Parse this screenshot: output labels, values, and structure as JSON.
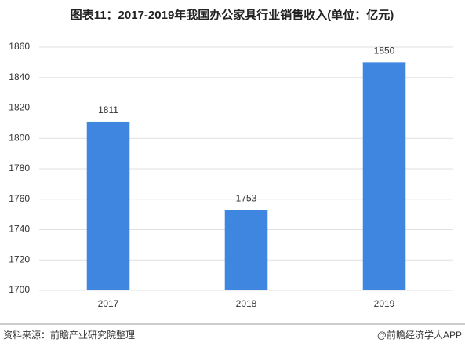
{
  "chart_data": {
    "type": "bar",
    "title": "图表11：2017-2019年我国办公家具行业销售收入(单位：亿元)",
    "categories": [
      "2017",
      "2018",
      "2019"
    ],
    "values": [
      1811,
      1753,
      1850
    ],
    "color": "#3f86e0",
    "ylim": [
      1700,
      1860
    ],
    "yticks": [
      1700,
      1720,
      1740,
      1760,
      1780,
      1800,
      1820,
      1840,
      1860
    ],
    "grid": true,
    "source": "资料来源：前瞻产业研究院整理",
    "credit": "@前瞻经济学人APP"
  }
}
